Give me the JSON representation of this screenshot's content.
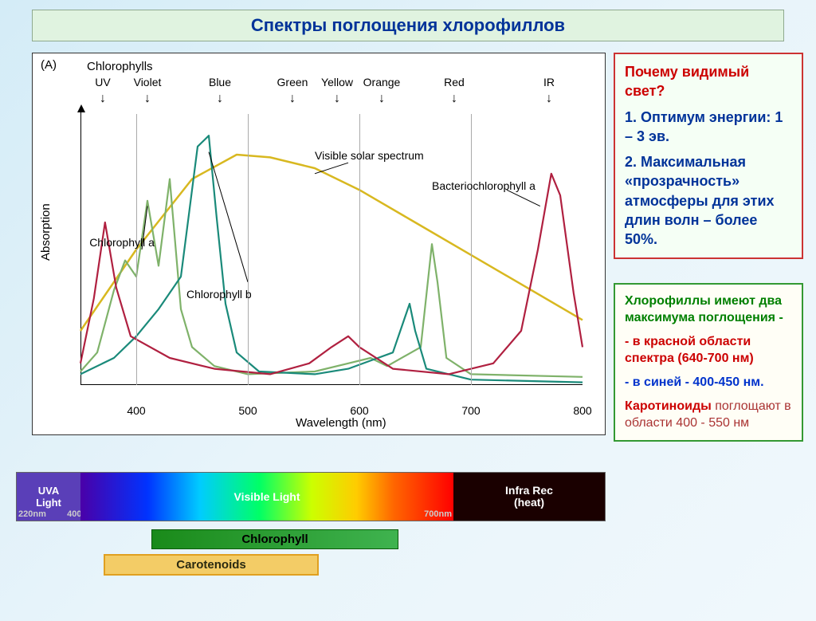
{
  "title": "Спектры поглощения хлорофиллов",
  "chart": {
    "panel": "(A)",
    "subtitle": "Chlorophylls",
    "y_axis": "Absorption",
    "x_axis": "Wavelength (nm)",
    "x_min": 350,
    "x_max": 800,
    "x_ticks": [
      400,
      500,
      600,
      700,
      800
    ],
    "grid_x": [
      400,
      500,
      600,
      700
    ],
    "colorbands": [
      {
        "label": "UV",
        "x": 370
      },
      {
        "label": "Violet",
        "x": 410
      },
      {
        "label": "Blue",
        "x": 475
      },
      {
        "label": "Green",
        "x": 540
      },
      {
        "label": "Yellow",
        "x": 580
      },
      {
        "label": "Orange",
        "x": 620
      },
      {
        "label": "Red",
        "x": 685
      },
      {
        "label": "IR",
        "x": 770
      }
    ],
    "curve_labels": {
      "chl_a": {
        "text": "Chlorophyll a",
        "x": 358,
        "y": 55
      },
      "chl_b": {
        "text": "Chlorophyll b",
        "x": 445,
        "y": 36
      },
      "solar": {
        "text": "Visible solar spectrum",
        "x": 560,
        "y": 87
      },
      "bchl": {
        "text": "Bacteriochlorophyll a",
        "x": 665,
        "y": 76
      }
    },
    "colors": {
      "chl_a": "#7fb26a",
      "chl_b": "#1a8a7a",
      "solar": "#d8b820",
      "bchl": "#b02040",
      "grid": "#aaaaaa",
      "axis": "#000000"
    },
    "series": {
      "solar": [
        [
          350,
          20
        ],
        [
          400,
          50
        ],
        [
          450,
          76
        ],
        [
          490,
          85
        ],
        [
          520,
          84
        ],
        [
          560,
          80
        ],
        [
          600,
          72
        ],
        [
          650,
          60
        ],
        [
          700,
          48
        ],
        [
          750,
          36
        ],
        [
          800,
          24
        ]
      ],
      "chl_a": [
        [
          350,
          5
        ],
        [
          365,
          12
        ],
        [
          380,
          35
        ],
        [
          390,
          46
        ],
        [
          400,
          40
        ],
        [
          410,
          68
        ],
        [
          420,
          44
        ],
        [
          430,
          76
        ],
        [
          440,
          28
        ],
        [
          450,
          14
        ],
        [
          470,
          7
        ],
        [
          500,
          4
        ],
        [
          560,
          5
        ],
        [
          590,
          8
        ],
        [
          610,
          10
        ],
        [
          625,
          7
        ],
        [
          655,
          14
        ],
        [
          665,
          52
        ],
        [
          670,
          38
        ],
        [
          678,
          10
        ],
        [
          700,
          4
        ],
        [
          800,
          3
        ]
      ],
      "chl_b": [
        [
          350,
          4
        ],
        [
          380,
          10
        ],
        [
          400,
          18
        ],
        [
          420,
          28
        ],
        [
          440,
          40
        ],
        [
          455,
          88
        ],
        [
          465,
          92
        ],
        [
          472,
          62
        ],
        [
          480,
          30
        ],
        [
          490,
          12
        ],
        [
          510,
          5
        ],
        [
          560,
          4
        ],
        [
          590,
          6
        ],
        [
          610,
          9
        ],
        [
          630,
          12
        ],
        [
          645,
          30
        ],
        [
          650,
          20
        ],
        [
          660,
          6
        ],
        [
          700,
          2
        ],
        [
          800,
          1
        ]
      ],
      "bchl": [
        [
          350,
          8
        ],
        [
          362,
          32
        ],
        [
          372,
          60
        ],
        [
          382,
          36
        ],
        [
          395,
          18
        ],
        [
          430,
          10
        ],
        [
          470,
          6
        ],
        [
          520,
          4
        ],
        [
          555,
          8
        ],
        [
          575,
          14
        ],
        [
          590,
          18
        ],
        [
          600,
          14
        ],
        [
          630,
          6
        ],
        [
          680,
          4
        ],
        [
          720,
          8
        ],
        [
          745,
          20
        ],
        [
          760,
          50
        ],
        [
          772,
          78
        ],
        [
          780,
          70
        ],
        [
          792,
          34
        ],
        [
          800,
          14
        ]
      ]
    }
  },
  "info1": {
    "question": "Почему видимый свет?",
    "line1": "1. Оптимум энергии: 1 – 3 эв.",
    "line2a": "2. Максимальная «прозрачность» атмосферы для этих длин волн – более 50%."
  },
  "info2": {
    "line1a": "Хлорофиллы",
    "line1b": " имеют два максимума поглощения  -",
    "line2": " - в красной области спектра (640-700 нм)",
    "line3": " - в синей - 400-450 нм.",
    "line4a": "Каротиноиды ",
    "line4b": "поглощают в области 400 - 550 нм"
  },
  "spectrum": {
    "uva_top": "UVA",
    "uva_bot": "Light",
    "uva_nm1": "220nm",
    "uva_nm2": "400nm",
    "vis": "Visible Light",
    "vis_nm": "700nm",
    "ir_top": "Infra Rec",
    "ir_bot": "(heat)"
  },
  "legend": {
    "chlorophyll": "Chlorophyll",
    "carotenoids": "Carotenoids"
  }
}
